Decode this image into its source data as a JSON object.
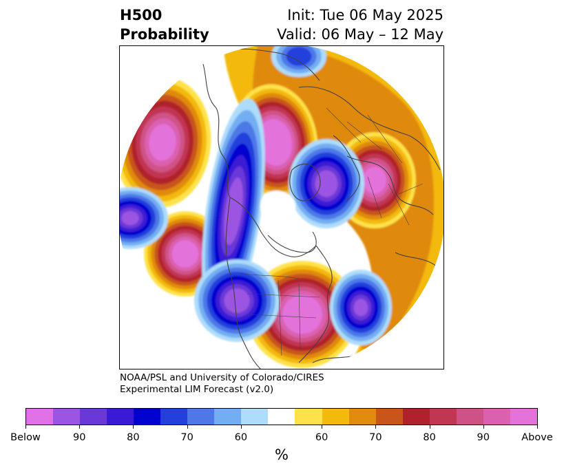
{
  "title": {
    "left_line1": "H500",
    "left_line2": "Probability",
    "right_line1": "Init: Tue 06 May 2025",
    "right_line2": "Valid: 06 May – 12 May"
  },
  "credit": {
    "line1": "NOAA/PSL and University of Colorado/CIRES",
    "line2": "Experimental LIM Forecast (v2.0)"
  },
  "colorbar": {
    "colors": [
      "#e070e6",
      "#9b55e2",
      "#6b38d8",
      "#3a1ad4",
      "#0000cf",
      "#2440dc",
      "#4e78e8",
      "#73aef2",
      "#aedcfb",
      "#ffffff",
      "#ffe24a",
      "#f3b90c",
      "#e08a0e",
      "#c8551a",
      "#b0212b",
      "#c13652",
      "#cf5286",
      "#dc60b0",
      "#e373db"
    ],
    "tick_labels": [
      "Below",
      "90",
      "80",
      "70",
      "60",
      "60",
      "70",
      "80",
      "90",
      "Above"
    ],
    "unit": "%"
  },
  "map": {
    "projection": "north polar stereographic",
    "palette": {
      "above_max": "#e373db",
      "above_4": "#dc60b0",
      "above_3": "#cf5286",
      "above_2": "#c13652",
      "above_1": "#b0212b",
      "orange_dark": "#c8551a",
      "orange": "#e08a0e",
      "gold": "#f3b90c",
      "yellow": "#ffe24a",
      "neutral": "#ffffff",
      "blue_light": "#aedcfb",
      "blue_2": "#73aef2",
      "blue_3": "#4e78e8",
      "blue_4": "#2440dc",
      "blue_5": "#0000cf",
      "purple_1": "#3a1ad4",
      "purple_2": "#6b38d8",
      "below_max": "#9b55e2",
      "coastline": "#404040"
    }
  }
}
